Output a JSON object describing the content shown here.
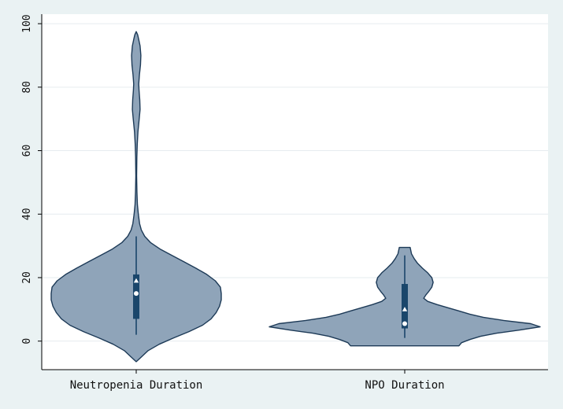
{
  "chart_data": {
    "type": "violin",
    "title": "",
    "xlabel": "",
    "ylabel": "",
    "ylim": [
      -9,
      103
    ],
    "yticks": [
      0,
      20,
      40,
      60,
      80,
      100
    ],
    "grid": true,
    "legend": "none",
    "categories": [
      "Neutropenia Duration",
      "NPO Duration"
    ],
    "violins": [
      {
        "category": "Neutropenia Duration",
        "range": [
          -6.5,
          97.5
        ],
        "density": [
          [
            -6.5,
            0.0
          ],
          [
            -5,
            0.06
          ],
          [
            -3,
            0.14
          ],
          [
            -1,
            0.27
          ],
          [
            1,
            0.44
          ],
          [
            3,
            0.62
          ],
          [
            5,
            0.78
          ],
          [
            7,
            0.88
          ],
          [
            9,
            0.94
          ],
          [
            11,
            0.98
          ],
          [
            13,
            1.0
          ],
          [
            15,
            1.0
          ],
          [
            17,
            0.99
          ],
          [
            19,
            0.93
          ],
          [
            21,
            0.83
          ],
          [
            23,
            0.7
          ],
          [
            25,
            0.56
          ],
          [
            27,
            0.42
          ],
          [
            29,
            0.28
          ],
          [
            31,
            0.17
          ],
          [
            33,
            0.1
          ],
          [
            35,
            0.06
          ],
          [
            37,
            0.04
          ],
          [
            40,
            0.025
          ],
          [
            43,
            0.014
          ],
          [
            47,
            0.008
          ],
          [
            52,
            0.005
          ],
          [
            58,
            0.007
          ],
          [
            62,
            0.012
          ],
          [
            66,
            0.02
          ],
          [
            70,
            0.035
          ],
          [
            73,
            0.045
          ],
          [
            76,
            0.042
          ],
          [
            79,
            0.033
          ],
          [
            81,
            0.03
          ],
          [
            84,
            0.038
          ],
          [
            87,
            0.05
          ],
          [
            90,
            0.055
          ],
          [
            93,
            0.045
          ],
          [
            95,
            0.03
          ],
          [
            96.5,
            0.017
          ],
          [
            97.5,
            0.0
          ]
        ],
        "box": {
          "whisker_low": 2,
          "q1": 7,
          "median": 15,
          "q3": 21,
          "whisker_high": 33,
          "mean": 19
        }
      },
      {
        "category": "NPO Duration",
        "range": [
          -1.5,
          29.5
        ],
        "density": [
          [
            -1.5,
            0.4
          ],
          [
            -0.5,
            0.42
          ],
          [
            0.5,
            0.48
          ],
          [
            1.5,
            0.56
          ],
          [
            2.5,
            0.68
          ],
          [
            3.5,
            0.85
          ],
          [
            4.5,
            1.0
          ],
          [
            5.5,
            0.93
          ],
          [
            6.5,
            0.73
          ],
          [
            7.5,
            0.58
          ],
          [
            8.5,
            0.48
          ],
          [
            9.5,
            0.4
          ],
          [
            10.5,
            0.32
          ],
          [
            11.5,
            0.24
          ],
          [
            12.5,
            0.17
          ],
          [
            13.5,
            0.14
          ],
          [
            14.5,
            0.155
          ],
          [
            15.5,
            0.175
          ],
          [
            17,
            0.2
          ],
          [
            18.5,
            0.21
          ],
          [
            20,
            0.2
          ],
          [
            21.5,
            0.17
          ],
          [
            23,
            0.13
          ],
          [
            24.5,
            0.095
          ],
          [
            26,
            0.07
          ],
          [
            27.5,
            0.05
          ],
          [
            29.5,
            0.04
          ]
        ],
        "box": {
          "whisker_low": 1,
          "q1": 4,
          "median": 5.5,
          "q3": 18,
          "whisker_high": 27,
          "mean": 10
        }
      }
    ],
    "colors": {
      "background": "#eaf2f3",
      "plot_background": "#ffffff",
      "gridline": "#e6ecef",
      "violin_fill": "#8fa4b9",
      "violin_outline": "#1d3a57",
      "box_fill": "#1a466b",
      "axis": "#000000"
    }
  }
}
